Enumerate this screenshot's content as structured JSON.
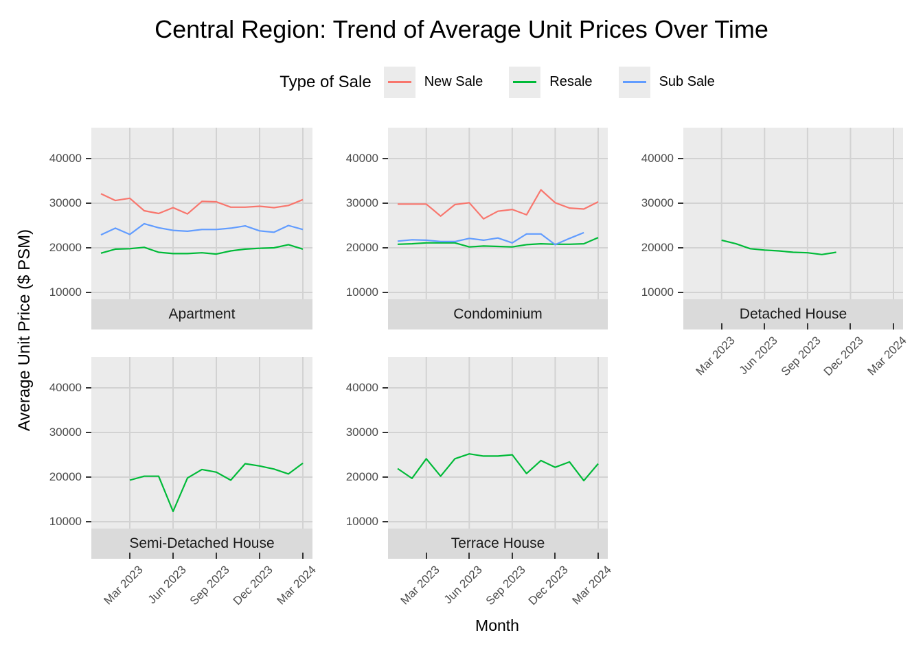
{
  "title": "Central Region: Trend of Average Unit Prices Over Time",
  "legend": {
    "title": "Type of Sale",
    "items": [
      {
        "label": "New Sale",
        "color": "#F8766D"
      },
      {
        "label": "Resale",
        "color": "#00BA38"
      },
      {
        "label": "Sub Sale",
        "color": "#619CFF"
      }
    ]
  },
  "axes": {
    "x_label": "Month",
    "y_label": "Average Unit Price ($ PSM)",
    "y_tick_labels": [
      "40000",
      "30000",
      "20000",
      "10000"
    ],
    "x_tick_labels": [
      "Mar 2023",
      "Jun 2023",
      "Sep 2023",
      "Dec 2023",
      "Mar 2024"
    ]
  },
  "colors": {
    "panel_background": "#EBEBEB",
    "gridline": "#D2D2D2",
    "strip_background": "#DADADA",
    "tick_mark": "#333333",
    "tick_text": "#4D4D4D"
  },
  "chart_data": {
    "type": "line",
    "title": "Central Region: Trend of Average Unit Prices Over Time",
    "x_label": "Month",
    "y_label": "Average Unit Price ($ PSM)",
    "x": [
      "Jan 2023",
      "Feb 2023",
      "Mar 2023",
      "Apr 2023",
      "May 2023",
      "Jun 2023",
      "Jul 2023",
      "Aug 2023",
      "Sep 2023",
      "Oct 2023",
      "Nov 2023",
      "Dec 2023",
      "Jan 2024",
      "Feb 2024",
      "Mar 2024"
    ],
    "x_tick_indices": [
      2,
      5,
      8,
      11,
      14
    ],
    "x_tick_labels": [
      "Mar 2023",
      "Jun 2023",
      "Sep 2023",
      "Dec 2023",
      "Mar 2024"
    ],
    "y_ticks": [
      40000,
      30000,
      20000,
      10000
    ],
    "ylim": [
      8500,
      46500
    ],
    "grid": "major-only",
    "legend_position": "top",
    "series_colors": {
      "New Sale": "#F8766D",
      "Resale": "#00BA38",
      "Sub Sale": "#619CFF"
    },
    "panels": [
      {
        "facet": "Apartment",
        "series": [
          {
            "name": "New Sale",
            "start_index": 0,
            "values": [
              32100,
              30600,
              31100,
              28300,
              27700,
              29000,
              27600,
              30400,
              30300,
              29100,
              29100,
              29300,
              29000,
              29500,
              30800
            ]
          },
          {
            "name": "Resale",
            "start_index": 0,
            "values": [
              18800,
              19700,
              19800,
              20100,
              19000,
              18700,
              18700,
              18900,
              18600,
              19300,
              19700,
              19900,
              20000,
              20700,
              19700
            ]
          },
          {
            "name": "Sub Sale",
            "start_index": 0,
            "values": [
              22900,
              24400,
              23000,
              25400,
              24500,
              23900,
              23700,
              24100,
              24100,
              24400,
              24900,
              23800,
              23500,
              25000,
              24100
            ]
          }
        ]
      },
      {
        "facet": "Condominium",
        "series": [
          {
            "name": "New Sale",
            "start_index": 0,
            "values": [
              29800,
              29800,
              29800,
              27100,
              29700,
              30100,
              26500,
              28200,
              28600,
              27400,
              33000,
              30100,
              28900,
              28700,
              30300
            ]
          },
          {
            "name": "Resale",
            "start_index": 0,
            "values": [
              20800,
              20900,
              21100,
              21100,
              21100,
              20200,
              20400,
              20300,
              20200,
              20700,
              20900,
              20800,
              20800,
              20900,
              22300
            ]
          },
          {
            "name": "Sub Sale",
            "start_index": 0,
            "values": [
              21500,
              21800,
              21700,
              21400,
              21400,
              22100,
              21700,
              22200,
              21100,
              23100,
              23100,
              20700,
              22100,
              23400
            ]
          }
        ]
      },
      {
        "facet": "Detached House",
        "series": [
          {
            "name": "Resale",
            "start_index": 2,
            "values": [
              21700,
              20900,
              19800,
              19500,
              19300,
              19000,
              18900,
              18500,
              19000
            ]
          }
        ]
      },
      {
        "facet": "Semi-Detached House",
        "series": [
          {
            "name": "Resale",
            "start_index": 2,
            "values": [
              19300,
              20200,
              20200,
              12300,
              19800,
              21700,
              21100,
              19300,
              23000,
              22500,
              21800,
              20700,
              23100
            ]
          }
        ]
      },
      {
        "facet": "Terrace House",
        "series": [
          {
            "name": "Resale",
            "start_index": 0,
            "values": [
              21900,
              19700,
              24100,
              20200,
              24100,
              25200,
              24700,
              24700,
              25000,
              20800,
              23700,
              22200,
              23400,
              19200,
              23000
            ]
          }
        ]
      }
    ]
  }
}
